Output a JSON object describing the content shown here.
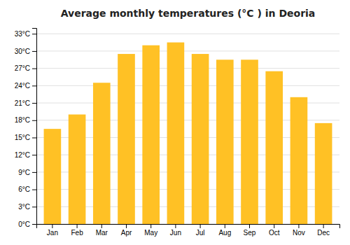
{
  "chart_data": {
    "type": "bar",
    "title": "Average monthly temperatures (°C ) in Deoria",
    "categories": [
      "Jan",
      "Feb",
      "Mar",
      "Apr",
      "May",
      "Jun",
      "Jul",
      "Aug",
      "Sep",
      "Oct",
      "Nov",
      "Dec"
    ],
    "values": [
      16.5,
      19.0,
      24.5,
      29.5,
      31.0,
      31.5,
      29.5,
      28.5,
      28.5,
      26.5,
      22.0,
      17.5
    ],
    "color": "#FFC125",
    "ylim": [
      0,
      34
    ],
    "yticks": [
      {
        "value": 0,
        "label": "0°C"
      },
      {
        "value": 3,
        "label": "3°C"
      },
      {
        "value": 6,
        "label": "6°C"
      },
      {
        "value": 9,
        "label": "9°C"
      },
      {
        "value": 12,
        "label": "12°C"
      },
      {
        "value": 15,
        "label": "15°C"
      },
      {
        "value": 18,
        "label": "18°C"
      },
      {
        "value": 21,
        "label": "21°C"
      },
      {
        "value": 24,
        "label": "24°C"
      },
      {
        "value": 27,
        "label": "27°C"
      },
      {
        "value": 30,
        "label": "30°C"
      },
      {
        "value": 33,
        "label": "33°C"
      }
    ],
    "grid": true
  }
}
